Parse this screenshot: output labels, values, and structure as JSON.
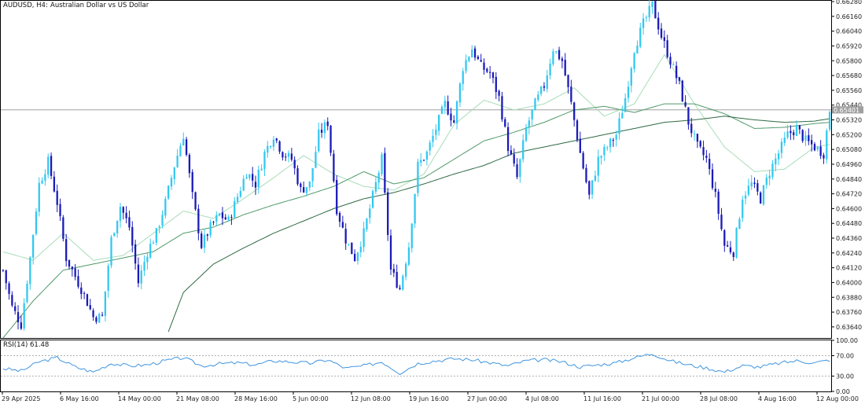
{
  "header": {
    "symbol": "AUDUSD, H4:",
    "description": "Australian Dollar vs US Dollar"
  },
  "rsi": {
    "label": "RSI(14) 61.48",
    "levels": [
      100,
      70,
      30,
      0
    ],
    "level_labels": [
      "100.00",
      "70.00",
      "30.00",
      "0.00"
    ]
  },
  "current_price_label": "0.65401",
  "colors": {
    "bull_candle": "#33c8f0",
    "bear_candle": "#1a1ab8",
    "ma_fast": "#a8dcb8",
    "ma_mid": "#4f9a6a",
    "ma_slow": "#2f6a44",
    "rsi_line": "#3f95e0",
    "price_line": "#a0a0a0"
  },
  "chart_data": [
    {
      "type": "candlestick",
      "title": "AUDUSD, H4:  Australian Dollar vs US Dollar",
      "x_tick_labels": [
        "29 Apr 2025",
        "6 May 16:00",
        "14 May 00:00",
        "21 May 08:00",
        "28 May 16:00",
        "5 Jun 00:00",
        "12 Jun 08:00",
        "19 Jun 16:00",
        "27 Jun 00:00",
        "4 Jul 08:00",
        "11 Jul 16:00",
        "21 Jul 00:00",
        "28 Jul 08:00",
        "4 Aug 16:00",
        "12 Aug 00:00"
      ],
      "y_tick_labels": [
        "0.66280",
        "0.66160",
        "0.66040",
        "0.65920",
        "0.65800",
        "0.65680",
        "0.65560",
        "0.65440",
        "0.65320",
        "0.65200",
        "0.65080",
        "0.64960",
        "0.64840",
        "0.64720",
        "0.64600",
        "0.64480",
        "0.64360",
        "0.64240",
        "0.64120",
        "0.64000",
        "0.63880",
        "0.63760",
        "0.63640"
      ],
      "ylim": [
        0.6355,
        0.6628
      ],
      "current_price": 0.65401,
      "close_path": [
        [
          0,
          0.641
        ],
        [
          3,
          0.638
        ],
        [
          6,
          0.6366
        ],
        [
          9,
          0.642
        ],
        [
          12,
          0.648
        ],
        [
          15,
          0.6498
        ],
        [
          18,
          0.6465
        ],
        [
          21,
          0.642
        ],
        [
          24,
          0.6405
        ],
        [
          27,
          0.639
        ],
        [
          30,
          0.6372
        ],
        [
          33,
          0.6372
        ],
        [
          36,
          0.6435
        ],
        [
          39,
          0.6462
        ],
        [
          42,
          0.6445
        ],
        [
          45,
          0.64
        ],
        [
          48,
          0.6425
        ],
        [
          51,
          0.644
        ],
        [
          54,
          0.6465
        ],
        [
          57,
          0.6495
        ],
        [
          60,
          0.652
        ],
        [
          63,
          0.647
        ],
        [
          66,
          0.643
        ],
        [
          69,
          0.6445
        ],
        [
          72,
          0.6455
        ],
        [
          75,
          0.645
        ],
        [
          78,
          0.647
        ],
        [
          81,
          0.649
        ],
        [
          84,
          0.648
        ],
        [
          87,
          0.6505
        ],
        [
          90,
          0.652
        ],
        [
          93,
          0.6505
        ],
        [
          96,
          0.65
        ],
        [
          99,
          0.6475
        ],
        [
          102,
          0.648
        ],
        [
          105,
          0.652
        ],
        [
          108,
          0.653
        ],
        [
          111,
          0.646
        ],
        [
          114,
          0.6435
        ],
        [
          117,
          0.642
        ],
        [
          120,
          0.644
        ],
        [
          123,
          0.647
        ],
        [
          126,
          0.65
        ],
        [
          129,
          0.641
        ],
        [
          132,
          0.6395
        ],
        [
          135,
          0.643
        ],
        [
          138,
          0.6495
        ],
        [
          141,
          0.6505
        ],
        [
          144,
          0.6525
        ],
        [
          147,
          0.6545
        ],
        [
          150,
          0.653
        ],
        [
          153,
          0.6575
        ],
        [
          156,
          0.659
        ],
        [
          159,
          0.6575
        ],
        [
          162,
          0.657
        ],
        [
          165,
          0.655
        ],
        [
          168,
          0.651
        ],
        [
          171,
          0.6485
        ],
        [
          174,
          0.6525
        ],
        [
          177,
          0.6545
        ],
        [
          180,
          0.656
        ],
        [
          183,
          0.659
        ],
        [
          186,
          0.658
        ],
        [
          189,
          0.6545
        ],
        [
          192,
          0.6505
        ],
        [
          195,
          0.647
        ],
        [
          198,
          0.65
        ],
        [
          201,
          0.651
        ],
        [
          204,
          0.652
        ],
        [
          207,
          0.655
        ],
        [
          210,
          0.659
        ],
        [
          213,
          0.661
        ],
        [
          216,
          0.6625
        ],
        [
          219,
          0.66
        ],
        [
          222,
          0.658
        ],
        [
          225,
          0.656
        ],
        [
          228,
          0.653
        ],
        [
          231,
          0.651
        ],
        [
          234,
          0.65
        ],
        [
          237,
          0.647
        ],
        [
          240,
          0.643
        ],
        [
          243,
          0.6425
        ],
        [
          246,
          0.647
        ],
        [
          249,
          0.648
        ],
        [
          252,
          0.6468
        ],
        [
          255,
          0.649
        ],
        [
          258,
          0.6505
        ],
        [
          261,
          0.652
        ],
        [
          264,
          0.6525
        ],
        [
          267,
          0.6515
        ],
        [
          270,
          0.651
        ],
        [
          273,
          0.6505
        ],
        [
          275,
          0.654
        ]
      ],
      "ma_fast": [
        [
          0,
          0.6425
        ],
        [
          10,
          0.6418
        ],
        [
          20,
          0.644
        ],
        [
          30,
          0.6418
        ],
        [
          40,
          0.6422
        ],
        [
          50,
          0.644
        ],
        [
          60,
          0.6458
        ],
        [
          70,
          0.6452
        ],
        [
          80,
          0.6468
        ],
        [
          90,
          0.6485
        ],
        [
          100,
          0.6503
        ],
        [
          110,
          0.6488
        ],
        [
          120,
          0.6478
        ],
        [
          130,
          0.6475
        ],
        [
          140,
          0.6488
        ],
        [
          150,
          0.6528
        ],
        [
          160,
          0.6548
        ],
        [
          170,
          0.654
        ],
        [
          180,
          0.6545
        ],
        [
          190,
          0.6558
        ],
        [
          200,
          0.6535
        ],
        [
          210,
          0.6545
        ],
        [
          220,
          0.6585
        ],
        [
          230,
          0.6545
        ],
        [
          240,
          0.651
        ],
        [
          250,
          0.649
        ],
        [
          260,
          0.6492
        ],
        [
          270,
          0.651
        ],
        [
          275,
          0.6512
        ]
      ],
      "ma_mid": [
        [
          0,
          0.6355
        ],
        [
          10,
          0.6385
        ],
        [
          20,
          0.641
        ],
        [
          30,
          0.6415
        ],
        [
          40,
          0.642
        ],
        [
          50,
          0.6425
        ],
        [
          60,
          0.644
        ],
        [
          70,
          0.6445
        ],
        [
          80,
          0.6455
        ],
        [
          90,
          0.6463
        ],
        [
          100,
          0.647
        ],
        [
          110,
          0.6478
        ],
        [
          120,
          0.649
        ],
        [
          130,
          0.648
        ],
        [
          140,
          0.6485
        ],
        [
          150,
          0.65
        ],
        [
          160,
          0.6515
        ],
        [
          170,
          0.6522
        ],
        [
          180,
          0.653
        ],
        [
          190,
          0.654
        ],
        [
          200,
          0.6543
        ],
        [
          210,
          0.6538
        ],
        [
          220,
          0.6545
        ],
        [
          230,
          0.6545
        ],
        [
          240,
          0.6537
        ],
        [
          250,
          0.6525
        ],
        [
          260,
          0.6526
        ],
        [
          270,
          0.6529
        ],
        [
          275,
          0.653
        ]
      ],
      "ma_slow": [
        [
          55,
          0.636
        ],
        [
          60,
          0.6392
        ],
        [
          70,
          0.6415
        ],
        [
          80,
          0.6428
        ],
        [
          90,
          0.644
        ],
        [
          100,
          0.645
        ],
        [
          110,
          0.646
        ],
        [
          120,
          0.6468
        ],
        [
          130,
          0.6473
        ],
        [
          140,
          0.648
        ],
        [
          150,
          0.6488
        ],
        [
          160,
          0.6495
        ],
        [
          170,
          0.6505
        ],
        [
          180,
          0.651
        ],
        [
          190,
          0.6515
        ],
        [
          200,
          0.652
        ],
        [
          210,
          0.6525
        ],
        [
          220,
          0.653
        ],
        [
          230,
          0.6532
        ],
        [
          240,
          0.6535
        ],
        [
          250,
          0.6532
        ],
        [
          260,
          0.653
        ],
        [
          270,
          0.6531
        ],
        [
          275,
          0.6533
        ]
      ]
    },
    {
      "type": "line",
      "title": "RSI(14) 61.48",
      "ylim": [
        0,
        100
      ],
      "y_tick_labels": [
        "100.00",
        "70.00",
        "30.00",
        "0.00"
      ],
      "last_value": 61.48,
      "series": [
        {
          "values": [
            [
              0,
              45
            ],
            [
              6,
              40
            ],
            [
              12,
              58
            ],
            [
              18,
              66
            ],
            [
              24,
              48
            ],
            [
              30,
              38
            ],
            [
              36,
              55
            ],
            [
              42,
              50
            ],
            [
              48,
              52
            ],
            [
              54,
              60
            ],
            [
              60,
              66
            ],
            [
              66,
              50
            ],
            [
              72,
              54
            ],
            [
              78,
              56
            ],
            [
              84,
              52
            ],
            [
              90,
              60
            ],
            [
              96,
              58
            ],
            [
              102,
              55
            ],
            [
              108,
              62
            ],
            [
              114,
              45
            ],
            [
              120,
              50
            ],
            [
              126,
              58
            ],
            [
              132,
              36
            ],
            [
              138,
              55
            ],
            [
              144,
              60
            ],
            [
              150,
              64
            ],
            [
              156,
              62
            ],
            [
              162,
              56
            ],
            [
              168,
              50
            ],
            [
              174,
              60
            ],
            [
              180,
              62
            ],
            [
              186,
              58
            ],
            [
              192,
              48
            ],
            [
              198,
              52
            ],
            [
              204,
              56
            ],
            [
              210,
              66
            ],
            [
              216,
              74
            ],
            [
              222,
              60
            ],
            [
              228,
              52
            ],
            [
              234,
              46
            ],
            [
              240,
              38
            ],
            [
              246,
              50
            ],
            [
              252,
              48
            ],
            [
              258,
              55
            ],
            [
              264,
              60
            ],
            [
              270,
              56
            ],
            [
              275,
              61.48
            ]
          ]
        }
      ]
    }
  ]
}
